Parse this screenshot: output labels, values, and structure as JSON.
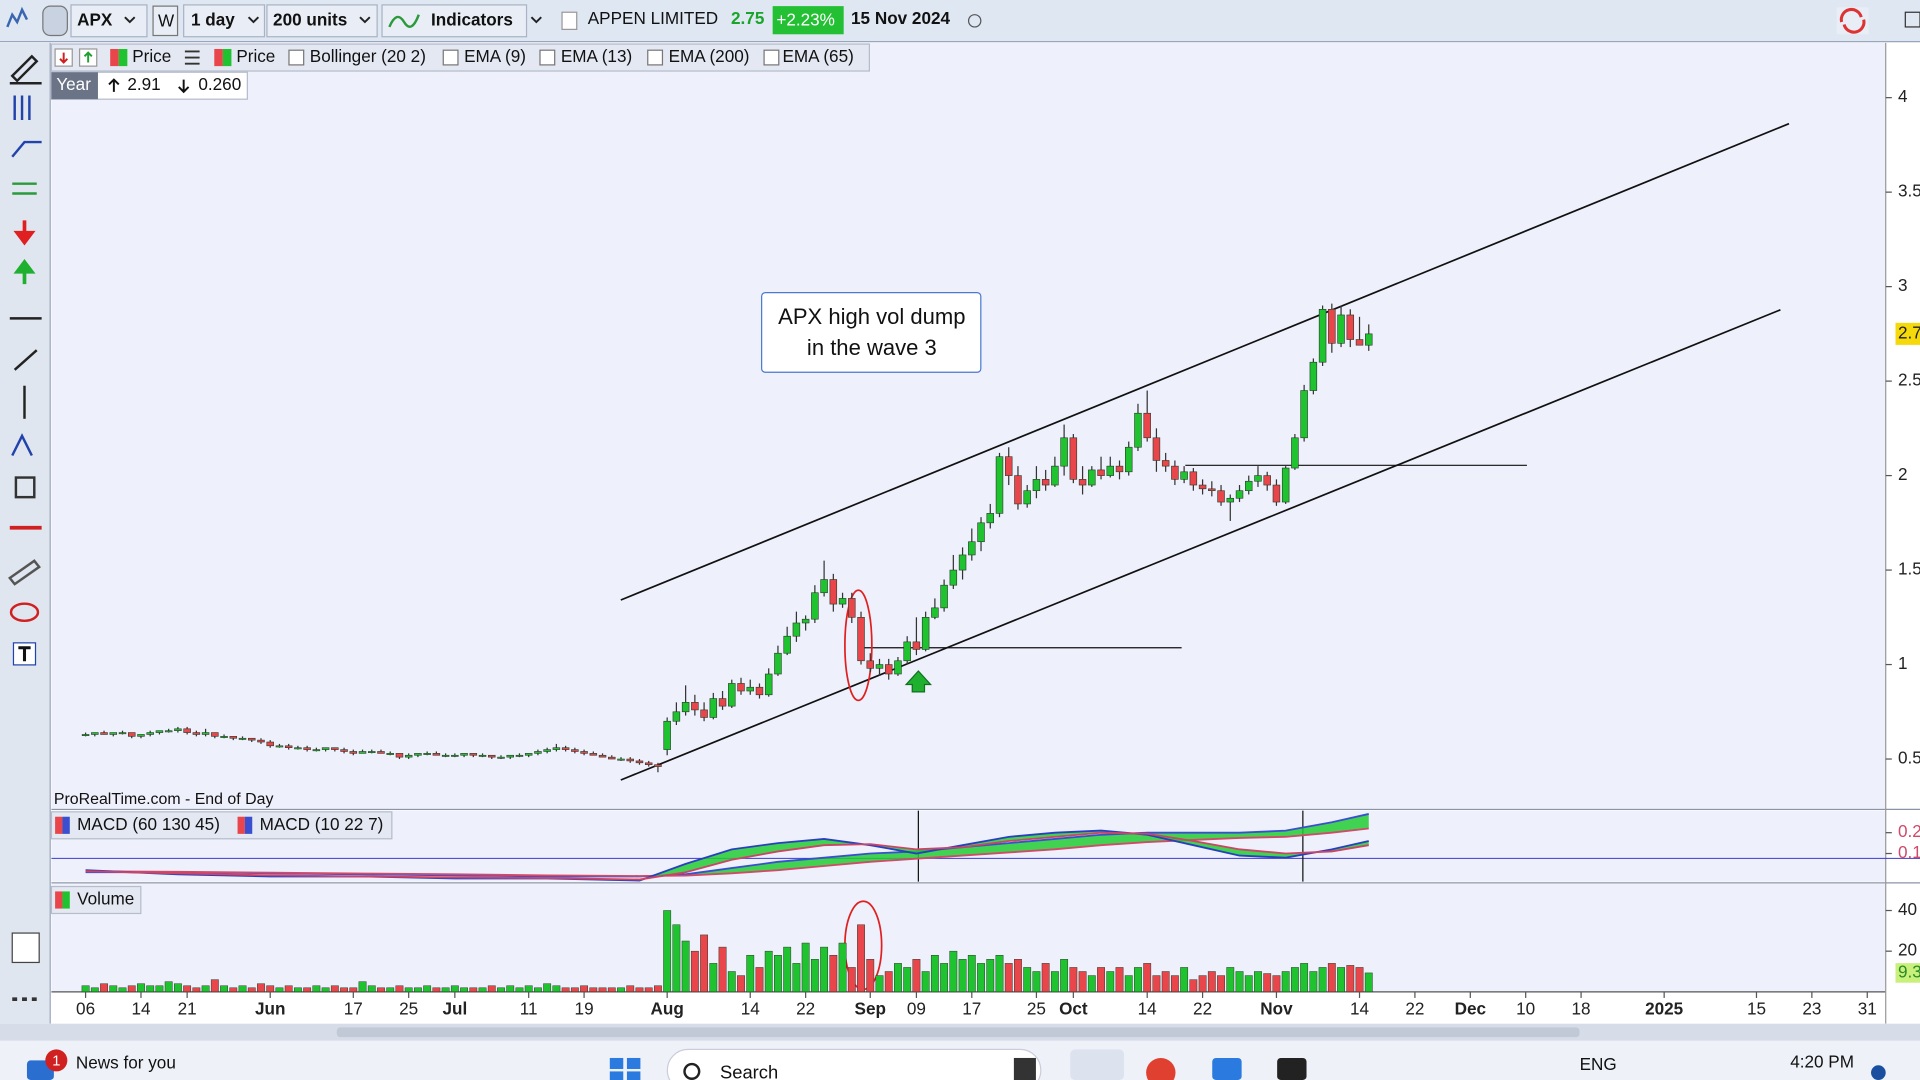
{
  "toolbar": {
    "symbol": "APX",
    "w": "W",
    "period": "1 day",
    "units": "200 units",
    "indicators": "Indicators",
    "name": "APPEN LIMITED",
    "last": "2.75",
    "change": "+2.23%",
    "date": "15 Nov 2024"
  },
  "legend": {
    "items": [
      "Price",
      "Price",
      "Bollinger (20 2)",
      "EMA (9)",
      "EMA (13)",
      "EMA (200)",
      "EMA (65)"
    ],
    "period": "Year",
    "high": "2.91",
    "low": "0.260"
  },
  "watermark": "ProRealTime.com - End of Day",
  "annotation": [
    "APX high vol dump",
    "in the wave 3"
  ],
  "chart_data": [
    {
      "type": "candlestick",
      "up_color": "#1fc32f",
      "down_color": "#e8464b",
      "xlim": [
        -3.7,
        195
      ],
      "ylim": [
        0.24,
        4.29
      ],
      "yticks": [
        0.5,
        1,
        1.5,
        2,
        2.5,
        3,
        3.5,
        4
      ],
      "candles": [
        [
          0.63,
          0.64,
          0.62,
          0.63
        ],
        [
          0.63,
          0.64,
          0.62,
          0.64
        ],
        [
          0.64,
          0.65,
          0.63,
          0.63
        ],
        [
          0.63,
          0.64,
          0.62,
          0.64
        ],
        [
          0.64,
          0.65,
          0.63,
          0.64
        ],
        [
          0.64,
          0.64,
          0.61,
          0.62
        ],
        [
          0.62,
          0.63,
          0.61,
          0.63
        ],
        [
          0.63,
          0.65,
          0.62,
          0.64
        ],
        [
          0.64,
          0.65,
          0.63,
          0.65
        ],
        [
          0.65,
          0.66,
          0.64,
          0.65
        ],
        [
          0.65,
          0.67,
          0.64,
          0.66
        ],
        [
          0.66,
          0.67,
          0.63,
          0.64
        ],
        [
          0.64,
          0.65,
          0.62,
          0.63
        ],
        [
          0.63,
          0.66,
          0.62,
          0.64
        ],
        [
          0.64,
          0.64,
          0.61,
          0.62
        ],
        [
          0.62,
          0.63,
          0.61,
          0.62
        ],
        [
          0.62,
          0.62,
          0.6,
          0.61
        ],
        [
          0.61,
          0.62,
          0.6,
          0.61
        ],
        [
          0.61,
          0.61,
          0.59,
          0.6
        ],
        [
          0.6,
          0.61,
          0.58,
          0.59
        ],
        [
          0.59,
          0.6,
          0.56,
          0.57
        ],
        [
          0.57,
          0.58,
          0.56,
          0.57
        ],
        [
          0.57,
          0.58,
          0.55,
          0.56
        ],
        [
          0.56,
          0.57,
          0.55,
          0.56
        ],
        [
          0.56,
          0.57,
          0.54,
          0.55
        ],
        [
          0.55,
          0.56,
          0.54,
          0.55
        ],
        [
          0.55,
          0.56,
          0.54,
          0.56
        ],
        [
          0.56,
          0.56,
          0.54,
          0.55
        ],
        [
          0.55,
          0.56,
          0.53,
          0.54
        ],
        [
          0.54,
          0.55,
          0.52,
          0.53
        ],
        [
          0.53,
          0.55,
          0.53,
          0.54
        ],
        [
          0.54,
          0.55,
          0.53,
          0.54
        ],
        [
          0.54,
          0.55,
          0.53,
          0.53
        ],
        [
          0.53,
          0.54,
          0.52,
          0.53
        ],
        [
          0.53,
          0.53,
          0.5,
          0.51
        ],
        [
          0.51,
          0.53,
          0.5,
          0.52
        ],
        [
          0.52,
          0.53,
          0.51,
          0.53
        ],
        [
          0.53,
          0.54,
          0.52,
          0.53
        ],
        [
          0.53,
          0.54,
          0.52,
          0.52
        ],
        [
          0.52,
          0.53,
          0.51,
          0.52
        ],
        [
          0.52,
          0.53,
          0.51,
          0.52
        ],
        [
          0.52,
          0.53,
          0.51,
          0.53
        ],
        [
          0.53,
          0.53,
          0.51,
          0.52
        ],
        [
          0.52,
          0.53,
          0.51,
          0.52
        ],
        [
          0.52,
          0.52,
          0.5,
          0.51
        ],
        [
          0.51,
          0.52,
          0.5,
          0.51
        ],
        [
          0.51,
          0.52,
          0.5,
          0.52
        ],
        [
          0.52,
          0.53,
          0.51,
          0.52
        ],
        [
          0.52,
          0.53,
          0.51,
          0.53
        ],
        [
          0.53,
          0.55,
          0.52,
          0.54
        ],
        [
          0.54,
          0.56,
          0.53,
          0.55
        ],
        [
          0.55,
          0.58,
          0.54,
          0.56
        ],
        [
          0.56,
          0.57,
          0.54,
          0.55
        ],
        [
          0.55,
          0.56,
          0.53,
          0.54
        ],
        [
          0.54,
          0.55,
          0.52,
          0.53
        ],
        [
          0.53,
          0.54,
          0.52,
          0.52
        ],
        [
          0.52,
          0.53,
          0.51,
          0.51
        ],
        [
          0.51,
          0.52,
          0.5,
          0.5
        ],
        [
          0.5,
          0.51,
          0.49,
          0.5
        ],
        [
          0.5,
          0.51,
          0.48,
          0.49
        ],
        [
          0.49,
          0.5,
          0.47,
          0.48
        ],
        [
          0.48,
          0.49,
          0.46,
          0.47
        ],
        [
          0.47,
          0.48,
          0.43,
          0.46
        ],
        [
          0.55,
          0.72,
          0.52,
          0.7
        ],
        [
          0.7,
          0.8,
          0.68,
          0.75
        ],
        [
          0.75,
          0.89,
          0.73,
          0.8
        ],
        [
          0.8,
          0.84,
          0.73,
          0.76
        ],
        [
          0.76,
          0.8,
          0.7,
          0.72
        ],
        [
          0.72,
          0.85,
          0.71,
          0.82
        ],
        [
          0.82,
          0.86,
          0.76,
          0.78
        ],
        [
          0.78,
          0.92,
          0.77,
          0.9
        ],
        [
          0.9,
          0.93,
          0.84,
          0.86
        ],
        [
          0.86,
          0.92,
          0.84,
          0.88
        ],
        [
          0.88,
          0.9,
          0.82,
          0.84
        ],
        [
          0.84,
          0.98,
          0.83,
          0.95
        ],
        [
          0.95,
          1.1,
          0.94,
          1.06
        ],
        [
          1.06,
          1.2,
          1.05,
          1.15
        ],
        [
          1.15,
          1.28,
          1.12,
          1.22
        ],
        [
          1.22,
          1.26,
          1.18,
          1.24
        ],
        [
          1.24,
          1.42,
          1.22,
          1.38
        ],
        [
          1.38,
          1.55,
          1.36,
          1.45
        ],
        [
          1.45,
          1.48,
          1.28,
          1.32
        ],
        [
          1.32,
          1.38,
          1.3,
          1.35
        ],
        [
          1.35,
          1.38,
          1.22,
          1.25
        ],
        [
          1.25,
          1.28,
          1.0,
          1.02
        ],
        [
          1.02,
          1.06,
          0.96,
          0.98
        ],
        [
          0.98,
          1.03,
          0.94,
          1.0
        ],
        [
          1.0,
          1.03,
          0.92,
          0.95
        ],
        [
          0.95,
          1.04,
          0.94,
          1.02
        ],
        [
          1.02,
          1.15,
          1.0,
          1.12
        ],
        [
          1.12,
          1.25,
          1.05,
          1.08
        ],
        [
          1.08,
          1.28,
          1.07,
          1.25
        ],
        [
          1.25,
          1.35,
          1.24,
          1.3
        ],
        [
          1.3,
          1.45,
          1.28,
          1.42
        ],
        [
          1.42,
          1.58,
          1.4,
          1.5
        ],
        [
          1.5,
          1.62,
          1.45,
          1.58
        ],
        [
          1.58,
          1.72,
          1.55,
          1.65
        ],
        [
          1.65,
          1.78,
          1.6,
          1.75
        ],
        [
          1.75,
          1.85,
          1.72,
          1.8
        ],
        [
          1.8,
          2.12,
          1.78,
          2.1
        ],
        [
          2.1,
          2.15,
          1.95,
          2.0
        ],
        [
          2.0,
          2.05,
          1.82,
          1.85
        ],
        [
          1.85,
          1.95,
          1.83,
          1.92
        ],
        [
          1.92,
          2.05,
          1.88,
          1.98
        ],
        [
          1.98,
          2.03,
          1.92,
          1.95
        ],
        [
          1.95,
          2.1,
          1.94,
          2.05
        ],
        [
          2.05,
          2.27,
          2.0,
          2.2
        ],
        [
          2.2,
          2.22,
          1.96,
          1.98
        ],
        [
          1.98,
          2.05,
          1.9,
          1.95
        ],
        [
          1.95,
          2.05,
          1.94,
          2.03
        ],
        [
          2.03,
          2.1,
          1.98,
          2.0
        ],
        [
          2.0,
          2.1,
          1.99,
          2.05
        ],
        [
          2.05,
          2.08,
          1.98,
          2.02
        ],
        [
          2.02,
          2.18,
          2.0,
          2.15
        ],
        [
          2.15,
          2.38,
          2.13,
          2.33
        ],
        [
          2.33,
          2.45,
          2.18,
          2.2
        ],
        [
          2.2,
          2.25,
          2.02,
          2.08
        ],
        [
          2.08,
          2.12,
          2.02,
          2.05
        ],
        [
          2.05,
          2.08,
          1.95,
          1.98
        ],
        [
          1.98,
          2.05,
          1.96,
          2.02
        ],
        [
          2.02,
          2.04,
          1.92,
          1.95
        ],
        [
          1.95,
          1.98,
          1.9,
          1.93
        ],
        [
          1.93,
          1.97,
          1.89,
          1.92
        ],
        [
          1.92,
          1.95,
          1.84,
          1.86
        ],
        [
          1.86,
          1.9,
          1.76,
          1.88
        ],
        [
          1.88,
          1.95,
          1.86,
          1.92
        ],
        [
          1.92,
          2.0,
          1.9,
          1.97
        ],
        [
          1.97,
          2.05,
          1.94,
          2.0
        ],
        [
          2.0,
          2.02,
          1.92,
          1.95
        ],
        [
          1.95,
          1.98,
          1.84,
          1.86
        ],
        [
          1.86,
          2.05,
          1.85,
          2.04
        ],
        [
          2.04,
          2.22,
          2.03,
          2.2
        ],
        [
          2.2,
          2.48,
          2.18,
          2.45
        ],
        [
          2.45,
          2.62,
          2.43,
          2.6
        ],
        [
          2.6,
          2.9,
          2.58,
          2.88
        ],
        [
          2.88,
          2.91,
          2.65,
          2.7
        ],
        [
          2.7,
          2.9,
          2.68,
          2.85
        ],
        [
          2.85,
          2.88,
          2.68,
          2.72
        ],
        [
          2.72,
          2.84,
          2.69,
          2.69
        ],
        [
          2.69,
          2.8,
          2.66,
          2.75
        ]
      ]
    },
    {
      "type": "macd",
      "xlim": [
        -3.7,
        195
      ],
      "ylim": [
        -0.035,
        0.306
      ],
      "yticks": [
        0.1,
        0.2
      ],
      "fill": "#22cc33",
      "x": [
        0,
        10,
        20,
        30,
        40,
        50,
        60,
        65,
        70,
        75,
        80,
        85,
        90,
        95,
        100,
        105,
        110,
        115,
        120,
        125,
        130,
        135,
        139
      ],
      "series": [
        {
          "name": "MACD (60 130 45)",
          "color": "#3a4fd0",
          "signal_color": "#d04a6a",
          "values": [
            0.01,
            0.01,
            0.005,
            0,
            -0.005,
            -0.01,
            -0.01,
            0,
            0.03,
            0.06,
            0.08,
            0.1,
            0.11,
            0.13,
            0.15,
            0.17,
            0.19,
            0.2,
            0.2,
            0.2,
            0.21,
            0.25,
            0.29
          ],
          "signal": [
            0.015,
            0.012,
            0.008,
            0.004,
            0,
            -0.005,
            -0.008,
            -0.006,
            0.005,
            0.02,
            0.04,
            0.06,
            0.075,
            0.09,
            0.105,
            0.12,
            0.14,
            0.155,
            0.165,
            0.175,
            0.18,
            0.2,
            0.22
          ]
        },
        {
          "name": "MACD (10 22 7)",
          "color": "#2a3fc0",
          "signal_color": "#cc4466",
          "values": [
            0.02,
            0,
            -0.01,
            -0.01,
            -0.02,
            -0.02,
            -0.03,
            0.05,
            0.12,
            0.15,
            0.17,
            0.14,
            0.1,
            0.14,
            0.18,
            0.2,
            0.21,
            0.19,
            0.14,
            0.09,
            0.08,
            0.12,
            0.16
          ],
          "signal": [
            0.015,
            0.005,
            -0.005,
            -0.01,
            -0.015,
            -0.018,
            -0.025,
            0.01,
            0.07,
            0.11,
            0.14,
            0.145,
            0.12,
            0.13,
            0.16,
            0.18,
            0.2,
            0.195,
            0.16,
            0.12,
            0.1,
            0.11,
            0.14
          ]
        }
      ]
    },
    {
      "type": "bar",
      "title": "Volume",
      "up_color": "#1fc32f",
      "down_color": "#e8464b",
      "xlim": [
        -3.7,
        195
      ],
      "ylim": [
        0,
        53
      ],
      "yticks": [
        20,
        40
      ],
      "xticks": [
        {
          "value": 0,
          "label": "06"
        },
        {
          "value": 6,
          "label": "14"
        },
        {
          "value": 11,
          "label": "21"
        },
        {
          "value": 20,
          "label": "Jun"
        },
        {
          "value": 29,
          "label": "17"
        },
        {
          "value": 35,
          "label": "25"
        },
        {
          "value": 40,
          "label": "Jul"
        },
        {
          "value": 48,
          "label": "11"
        },
        {
          "value": 54,
          "label": "19"
        },
        {
          "value": 63,
          "label": "Aug"
        },
        {
          "value": 72,
          "label": "14"
        },
        {
          "value": 78,
          "label": "22"
        },
        {
          "value": 85,
          "label": "Sep"
        },
        {
          "value": 90,
          "label": "09"
        },
        {
          "value": 96,
          "label": "17"
        },
        {
          "value": 103,
          "label": "25"
        },
        {
          "value": 107,
          "label": "Oct"
        },
        {
          "value": 115,
          "label": "14"
        },
        {
          "value": 121,
          "label": "22"
        },
        {
          "value": 129,
          "label": "Nov"
        },
        {
          "value": 138,
          "label": "14"
        },
        {
          "value": 144,
          "label": "22"
        },
        {
          "value": 150,
          "label": "Dec"
        },
        {
          "value": 156,
          "label": "10"
        },
        {
          "value": 162,
          "label": "18"
        },
        {
          "value": 171,
          "label": "2025"
        },
        {
          "value": 181,
          "label": "15"
        },
        {
          "value": 187,
          "label": "23"
        },
        {
          "value": 193,
          "label": "31"
        }
      ],
      "values": [
        3,
        2,
        4,
        3,
        2,
        3,
        4,
        3,
        3,
        5,
        4,
        3,
        2,
        3,
        6,
        3,
        2,
        3,
        2,
        4,
        3,
        2,
        3,
        2,
        2,
        3,
        2,
        3,
        2,
        2,
        5,
        3,
        2,
        2,
        3,
        2,
        2,
        3,
        2,
        2,
        3,
        2,
        2,
        2,
        3,
        2,
        3,
        2,
        3,
        2,
        4,
        3,
        2,
        2,
        3,
        2,
        2,
        2,
        2,
        3,
        2,
        2,
        3,
        40,
        33,
        25,
        20,
        28,
        14,
        22,
        10,
        8,
        18,
        12,
        20,
        18,
        22,
        14,
        24,
        16,
        22,
        18,
        24,
        12,
        33,
        16,
        8,
        10,
        14,
        12,
        16,
        10,
        18,
        14,
        20,
        16,
        18,
        14,
        16,
        18,
        14,
        16,
        12,
        10,
        14,
        10,
        16,
        12,
        10,
        8,
        12,
        10,
        12,
        8,
        12,
        14,
        8,
        10,
        8,
        12,
        6,
        8,
        10,
        8,
        12,
        10,
        8,
        10,
        9,
        8,
        10,
        12,
        14,
        10,
        12,
        14,
        12,
        13,
        12,
        9.3
      ]
    }
  ],
  "taskbar": {
    "badge": "1",
    "news": "News for you",
    "search": "Search",
    "lang": "ENG",
    "time": "4:20 PM"
  }
}
